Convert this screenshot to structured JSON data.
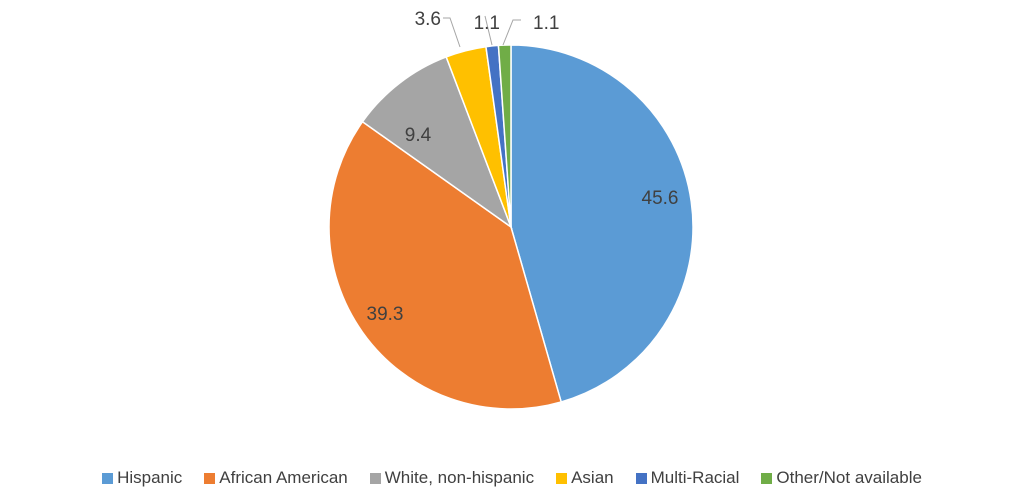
{
  "chart_data": {
    "type": "pie",
    "title": "",
    "slices": [
      {
        "label": "Hispanic",
        "value": 45.6,
        "color": "#5B9BD5",
        "value_label": "45.6"
      },
      {
        "label": "African American",
        "value": 39.3,
        "color": "#ED7D31",
        "value_label": "39.3"
      },
      {
        "label": "White, non-hispanic",
        "value": 9.4,
        "color": "#A5A5A5",
        "value_label": "9.4"
      },
      {
        "label": "Asian",
        "value": 3.6,
        "color": "#FFC000",
        "value_label": "3.6"
      },
      {
        "label": "Multi-Racial",
        "value": 1.1,
        "color": "#4472C4",
        "value_label": "1.1"
      },
      {
        "label": "Other/Not available",
        "value": 1.1,
        "color": "#70AD47",
        "value_label": "1.1"
      }
    ],
    "legend_position": "bottom",
    "start_angle": "12 o'clock, clockwise"
  }
}
